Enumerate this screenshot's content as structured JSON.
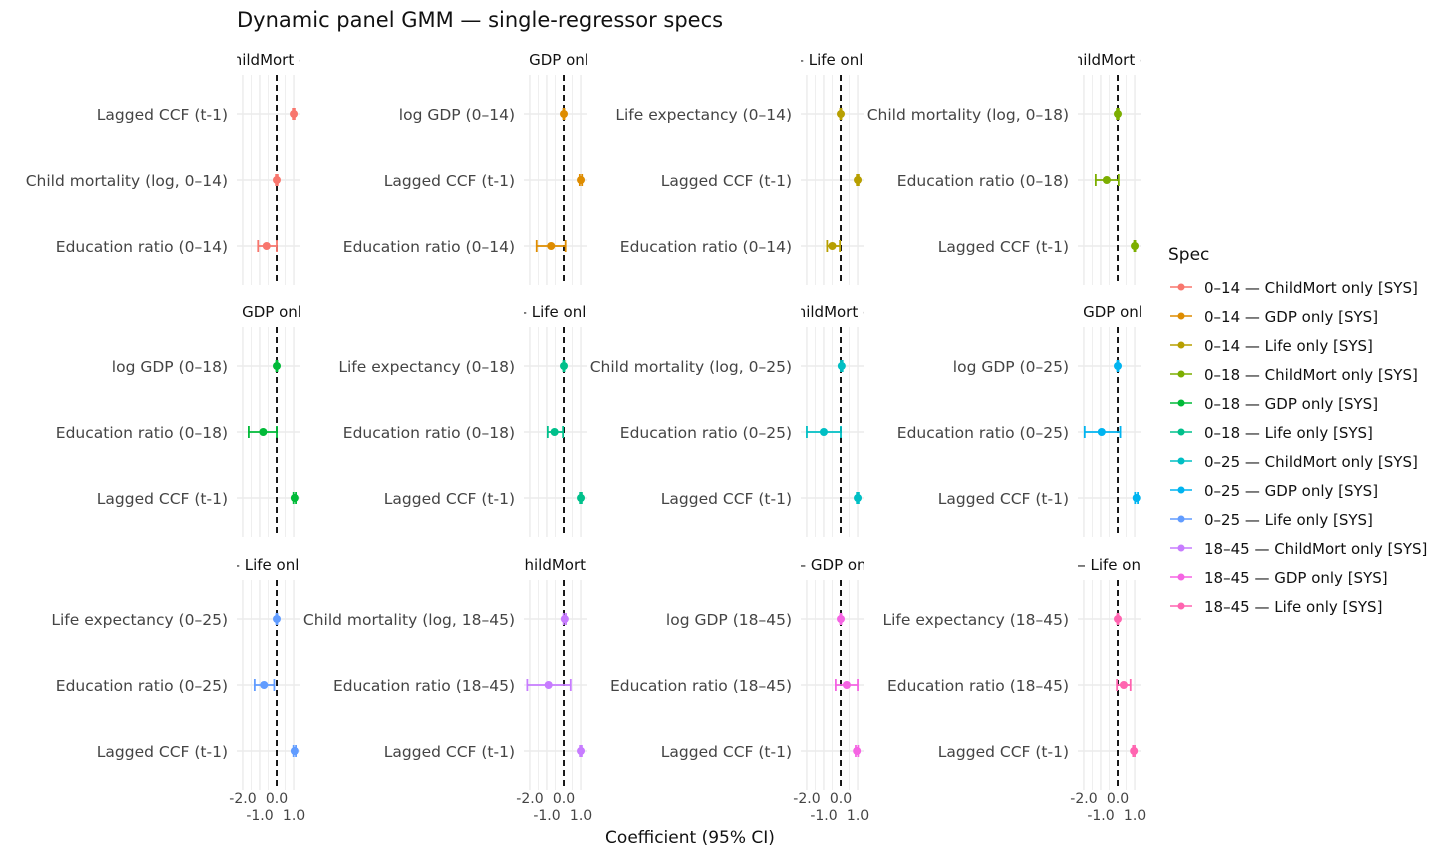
{
  "chart_data": {
    "type": "scatter",
    "subtype": "forest plot with error bars, faceted 3x4",
    "title": "Dynamic panel GMM — single-regressor specs",
    "xlabel": "Coefficient (95% CI)",
    "xlim": [
      -2.35,
      1.35
    ],
    "xticks": [
      "-2.0",
      "-1.0",
      "0.0",
      "1.0"
    ],
    "reference_line": 0,
    "legend": {
      "title": "Spec",
      "placement": "right"
    },
    "panels": [
      {
        "spec": "0–14 — ChildMort only [SYS]",
        "color": "#F8766D",
        "rows": [
          {
            "term": "Lagged CCF (t-1)",
            "est": 1.0,
            "lo": 0.95,
            "hi": 1.05
          },
          {
            "term": "Child mortality (log, 0–14)",
            "est": 0.0,
            "lo": -0.05,
            "hi": 0.05
          },
          {
            "term": "Education ratio (0–14)",
            "est": -0.6,
            "lo": -1.1,
            "hi": 0.0
          }
        ]
      },
      {
        "spec": "0–14 — GDP only [SYS]",
        "color": "#DE8C00",
        "rows": [
          {
            "term": "log GDP (0–14)",
            "est": 0.0,
            "lo": -0.03,
            "hi": 0.03
          },
          {
            "term": "Lagged CCF (t-1)",
            "est": 1.0,
            "lo": 0.93,
            "hi": 1.07
          },
          {
            "term": "Education ratio (0–14)",
            "est": -0.75,
            "lo": -1.6,
            "hi": 0.1
          }
        ]
      },
      {
        "spec": "0–14 — Life only [SYS]",
        "color": "#B79F00",
        "rows": [
          {
            "term": "Life expectancy (0–14)",
            "est": 0.0,
            "lo": -0.03,
            "hi": 0.03
          },
          {
            "term": "Lagged CCF (t-1)",
            "est": 1.0,
            "lo": 0.95,
            "hi": 1.05
          },
          {
            "term": "Education ratio (0–14)",
            "est": -0.5,
            "lo": -0.8,
            "hi": -0.05
          }
        ]
      },
      {
        "spec": "0–18 — ChildMort only [SYS]",
        "color": "#7CAE00",
        "rows": [
          {
            "term": "Child mortality (log, 0–18)",
            "est": 0.0,
            "lo": -0.05,
            "hi": 0.05
          },
          {
            "term": "Education ratio (0–18)",
            "est": -0.65,
            "lo": -1.3,
            "hi": 0.05
          },
          {
            "term": "Lagged CCF (t-1)",
            "est": 1.0,
            "lo": 0.97,
            "hi": 1.03
          }
        ]
      },
      {
        "spec": "0–18 — GDP only [SYS]",
        "color": "#00BA38",
        "rows": [
          {
            "term": "log GDP (0–18)",
            "est": 0.0,
            "lo": -0.03,
            "hi": 0.03
          },
          {
            "term": "Education ratio (0–18)",
            "est": -0.8,
            "lo": -1.65,
            "hi": 0.0
          },
          {
            "term": "Lagged CCF (t-1)",
            "est": 1.05,
            "lo": 0.98,
            "hi": 1.12
          }
        ]
      },
      {
        "spec": "0–18 — Life only [SYS]",
        "color": "#00C08B",
        "rows": [
          {
            "term": "Life expectancy (0–18)",
            "est": 0.0,
            "lo": -0.03,
            "hi": 0.03
          },
          {
            "term": "Education ratio (0–18)",
            "est": -0.55,
            "lo": -0.95,
            "hi": -0.05
          },
          {
            "term": "Lagged CCF (t-1)",
            "est": 1.0,
            "lo": 0.95,
            "hi": 1.05
          }
        ]
      },
      {
        "spec": "0–25 — ChildMort only [SYS]",
        "color": "#00BFC4",
        "rows": [
          {
            "term": "Child mortality (log, 0–25)",
            "est": 0.05,
            "lo": 0.0,
            "hi": 0.1
          },
          {
            "term": "Education ratio (0–25)",
            "est": -1.0,
            "lo": -2.0,
            "hi": 0.0
          },
          {
            "term": "Lagged CCF (t-1)",
            "est": 1.0,
            "lo": 0.95,
            "hi": 1.05
          }
        ]
      },
      {
        "spec": "0–25 — GDP only [SYS]",
        "color": "#00B4F0",
        "rows": [
          {
            "term": "log GDP (0–25)",
            "est": 0.0,
            "lo": -0.03,
            "hi": 0.03
          },
          {
            "term": "Education ratio (0–25)",
            "est": -0.95,
            "lo": -1.95,
            "hi": 0.15
          },
          {
            "term": "Lagged CCF (t-1)",
            "est": 1.1,
            "lo": 1.02,
            "hi": 1.18
          }
        ]
      },
      {
        "spec": "0–25 — Life only [SYS]",
        "color": "#619CFF",
        "rows": [
          {
            "term": "Life expectancy (0–25)",
            "est": 0.0,
            "lo": -0.03,
            "hi": 0.03
          },
          {
            "term": "Education ratio (0–25)",
            "est": -0.75,
            "lo": -1.3,
            "hi": -0.15
          },
          {
            "term": "Lagged CCF (t-1)",
            "est": 1.05,
            "lo": 0.98,
            "hi": 1.12
          }
        ]
      },
      {
        "spec": "18–45 — ChildMort only [SYS]",
        "color": "#C77CFF",
        "rows": [
          {
            "term": "Child mortality (log, 18–45)",
            "est": 0.05,
            "lo": -0.02,
            "hi": 0.12
          },
          {
            "term": "Education ratio (18–45)",
            "est": -0.9,
            "lo": -2.15,
            "hi": 0.4
          },
          {
            "term": "Lagged CCF (t-1)",
            "est": 1.0,
            "lo": 0.95,
            "hi": 1.05
          }
        ]
      },
      {
        "spec": "18–45 — GDP only [SYS]",
        "color": "#F564E3",
        "rows": [
          {
            "term": "log GDP (18–45)",
            "est": 0.0,
            "lo": -0.03,
            "hi": 0.03
          },
          {
            "term": "Education ratio (18–45)",
            "est": 0.35,
            "lo": -0.3,
            "hi": 1.0
          },
          {
            "term": "Lagged CCF (t-1)",
            "est": 0.95,
            "lo": 0.88,
            "hi": 1.02
          }
        ]
      },
      {
        "spec": "18–45 — Life only [SYS]",
        "color": "#FF64B0",
        "rows": [
          {
            "term": "Life expectancy (18–45)",
            "est": 0.0,
            "lo": -0.03,
            "hi": 0.03
          },
          {
            "term": "Education ratio (18–45)",
            "est": 0.35,
            "lo": -0.05,
            "hi": 0.75
          },
          {
            "term": "Lagged CCF (t-1)",
            "est": 0.95,
            "lo": 0.9,
            "hi": 1.0
          }
        ]
      }
    ]
  }
}
